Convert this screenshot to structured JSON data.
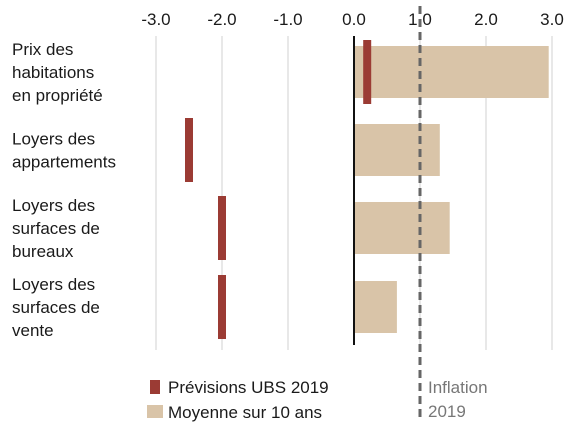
{
  "chart_data": {
    "type": "bar",
    "orientation": "horizontal",
    "categories": [
      [
        "Prix des",
        "habitations",
        "en propriété"
      ],
      [
        "Loyers des",
        "appartements"
      ],
      [
        "Loyers des",
        "surfaces de",
        "bureaux"
      ],
      [
        "Loyers des",
        "surfaces de",
        "vente"
      ]
    ],
    "series": [
      {
        "name": "Prévisions UBS 2019",
        "values": [
          0.2,
          -2.5,
          -2.0,
          -2.0
        ]
      },
      {
        "name": "Moyenne sur 10 ans",
        "values": [
          2.95,
          1.3,
          1.45,
          0.65
        ]
      }
    ],
    "xlim": [
      -3.0,
      3.0
    ],
    "x_ticks": [
      "-3.0",
      "-2.0",
      "-1.0",
      "0.0",
      "1.0",
      "2.0",
      "3.0"
    ],
    "tick_axis_position": "top",
    "grid": true,
    "legend_position": "bottom-left",
    "reference_line": {
      "value": 1.0,
      "label": [
        "Inflation",
        "2019"
      ],
      "style": "dashed"
    },
    "colors": {
      "forecast": "#9b3b34",
      "average": "#d9c4a8",
      "grid": "#d0d0d0",
      "reference": "#666666"
    }
  }
}
